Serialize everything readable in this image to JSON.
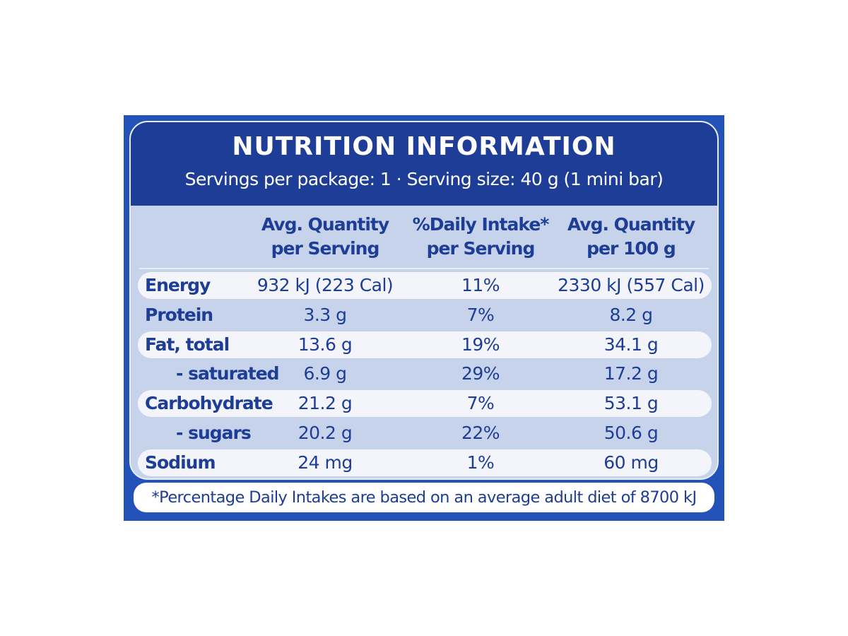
{
  "title": "NUTRITION INFORMATION",
  "subtitle": "Servings per package: 1 · Serving size: 40 g (1 mini bar)",
  "table": {
    "header": [
      [
        "Avg. Quantity",
        "per Serving"
      ],
      [
        "%Daily Intake*",
        "per Serving"
      ],
      [
        "Avg. Quantity",
        "per 100 g"
      ]
    ],
    "rows": [
      [
        "Energy",
        "932 kJ (223 Cal)",
        "11%",
        "2330 kJ (557 Cal)"
      ],
      [
        "Protein",
        "3.3 g",
        "7%",
        "8.2 g"
      ],
      [
        "Fat, total",
        "13.6 g",
        "19%",
        "34.1 g"
      ],
      [
        "- saturated",
        "6.9 g",
        "29%",
        "17.2 g"
      ],
      [
        "Carbohydrate",
        "21.2 g",
        "7%",
        "53.1 g"
      ],
      [
        "- sugars",
        "20.2 g",
        "22%",
        "50.6 g"
      ],
      [
        "Sodium",
        "24 mg",
        "1%",
        "60 mg"
      ]
    ]
  },
  "footnote": "*Percentage Daily Intakes are based on an average adult diet of 8700 kJ"
}
